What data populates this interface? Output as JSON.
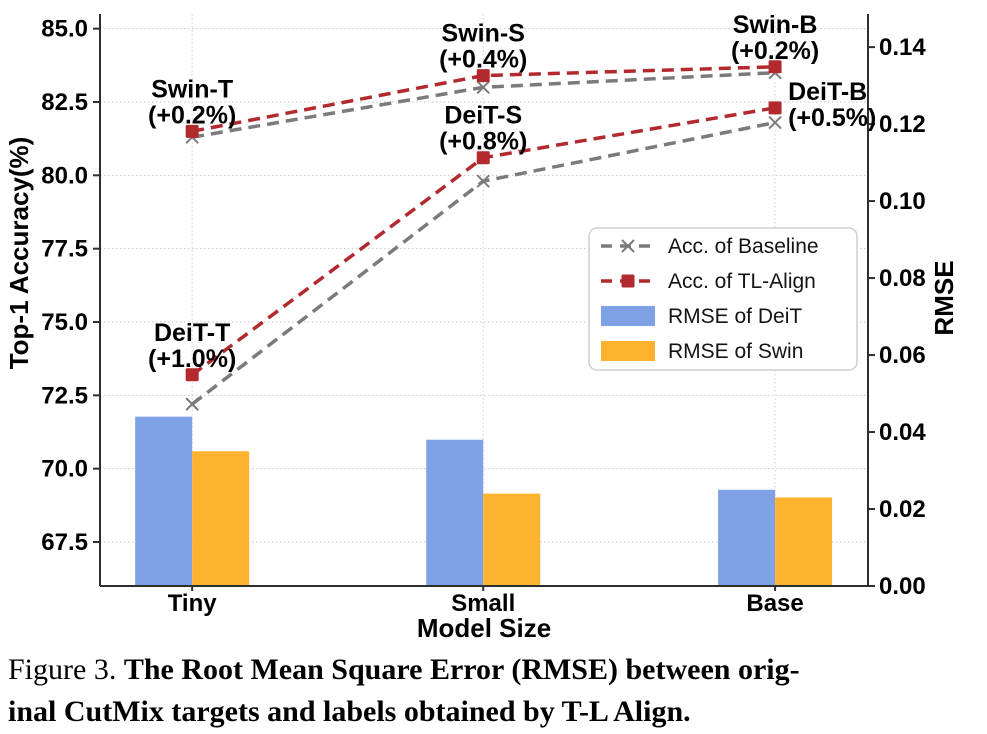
{
  "chart_data": {
    "type": "combo",
    "categories": [
      "Tiny",
      "Small",
      "Base"
    ],
    "xlabel": "Model Size",
    "ylabel_left": "Top-1 Accuracy(%)",
    "ylabel_right": "RMSE",
    "ylim_left": [
      66.0,
      85.5
    ],
    "ylim_right": [
      0.0,
      0.1486
    ],
    "yticks_left": [
      67.5,
      70.0,
      72.5,
      75.0,
      77.5,
      80.0,
      82.5,
      85.0
    ],
    "yticks_right": [
      0.0,
      0.02,
      0.04,
      0.06,
      0.08,
      0.1,
      0.12,
      0.14
    ],
    "grid": true,
    "legend_position": "center right",
    "series": [
      {
        "name": "Acc. of Baseline",
        "type": "line",
        "axis": "left",
        "color": "#7b7b7b",
        "marker": "x",
        "linestyle": "dashed",
        "groups": [
          {
            "model": "Swin",
            "values": [
              81.3,
              83.0,
              83.5
            ]
          },
          {
            "model": "DeiT",
            "values": [
              72.2,
              79.8,
              81.8
            ]
          }
        ]
      },
      {
        "name": "Acc. of TL-Align",
        "type": "line",
        "axis": "left",
        "color": "#b2292e",
        "marker": "square",
        "linestyle": "dashed",
        "groups": [
          {
            "model": "Swin",
            "values": [
              81.5,
              83.4,
              83.7
            ]
          },
          {
            "model": "DeiT",
            "values": [
              73.2,
              80.6,
              82.3
            ]
          }
        ]
      },
      {
        "name": "RMSE of DeiT",
        "type": "bar",
        "axis": "right",
        "color": "#7fa1e6",
        "values": [
          0.044,
          0.038,
          0.025
        ]
      },
      {
        "name": "RMSE of Swin",
        "type": "bar",
        "axis": "right",
        "color": "#fdb32e",
        "values": [
          0.035,
          0.024,
          0.023
        ]
      }
    ],
    "annotations": [
      {
        "label": "Swin-T",
        "delta": "(+0.2%)",
        "model": "Swin",
        "point": 0,
        "placement": "above"
      },
      {
        "label": "Swin-S",
        "delta": "(+0.4%)",
        "model": "Swin",
        "point": 1,
        "placement": "above"
      },
      {
        "label": "Swin-B",
        "delta": "(+0.2%)",
        "model": "Swin",
        "point": 2,
        "placement": "above"
      },
      {
        "label": "DeiT-T",
        "delta": "(+1.0%)",
        "model": "DeiT",
        "point": 0,
        "placement": "above"
      },
      {
        "label": "DeiT-S",
        "delta": "(+0.8%)",
        "model": "DeiT",
        "point": 1,
        "placement": "above"
      },
      {
        "label": "DeiT-B",
        "delta": "(+0.5%)",
        "model": "DeiT",
        "point": 2,
        "placement": "right"
      }
    ],
    "legend": [
      "Acc. of Baseline",
      "Acc. of TL-Align",
      "RMSE of DeiT",
      "RMSE of Swin"
    ]
  },
  "caption": {
    "prefix": "Figure 3.",
    "bold_line1": "The Root Mean Square Error (RMSE) between orig-",
    "bold_line2": "inal CutMix targets and labels obtained by T-L Align."
  }
}
